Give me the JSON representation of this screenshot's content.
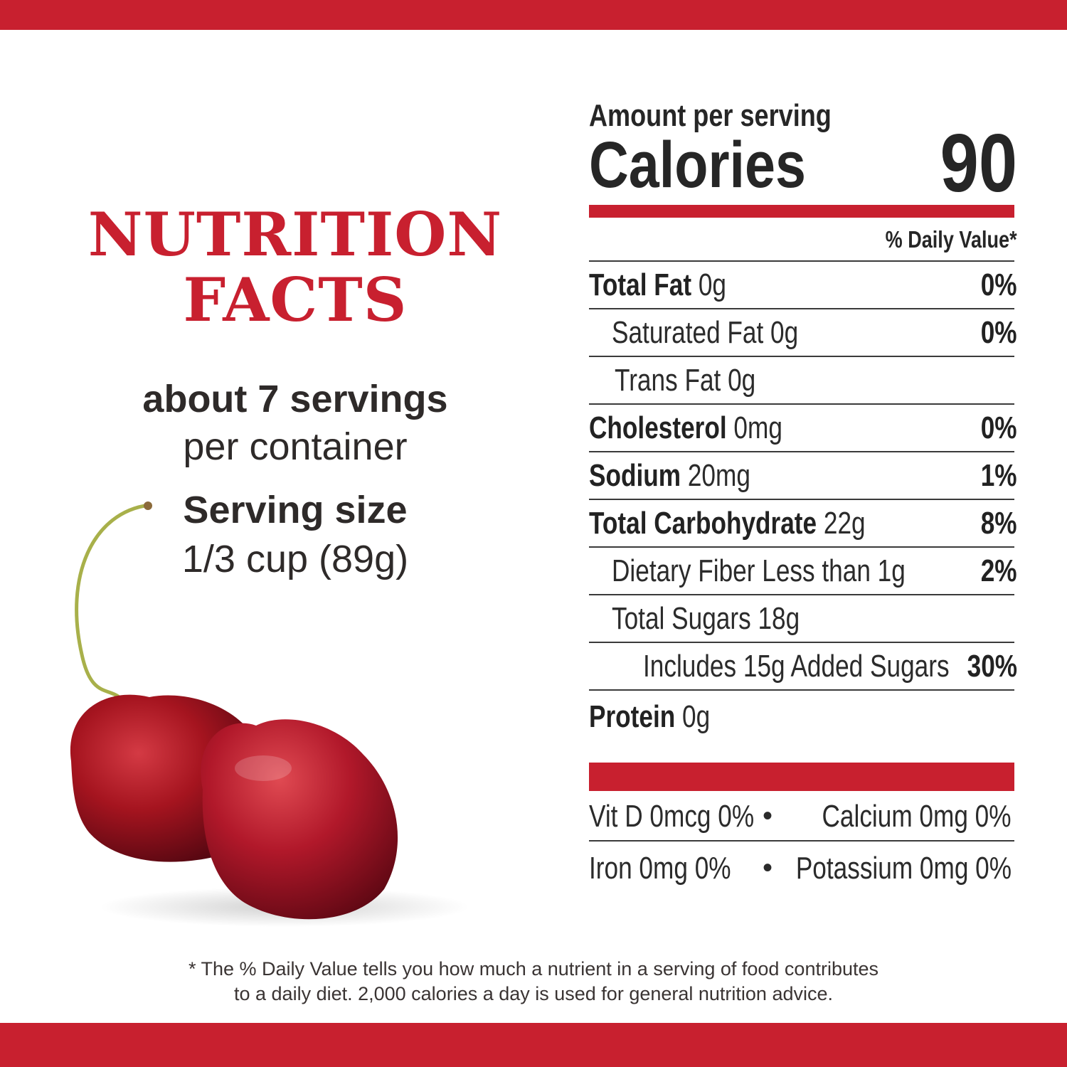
{
  "brand_colors": {
    "accent": "#c8202f",
    "text": "#2b2b2b"
  },
  "heading": {
    "line1": "NUTRITION",
    "line2": "FACTS"
  },
  "servings": {
    "count": "about 7 servings",
    "per": "per container",
    "size_label": "Serving size",
    "size_value": "1/3 cup (89g)"
  },
  "image": {
    "icon": "cherries-illustration"
  },
  "label": {
    "amount_per_serving": "Amount per serving",
    "calories_label": "Calories",
    "calories_value": "90",
    "daily_value_header": "% Daily Value*",
    "rows": [
      {
        "name": "Total Fat",
        "amount": "0g",
        "dv": "0%"
      },
      {
        "name": "Saturated Fat 0g",
        "amount": "",
        "dv": "0%"
      },
      {
        "name": "Trans Fat 0g",
        "amount": "",
        "dv": ""
      },
      {
        "name": "Cholesterol",
        "amount": "0mg",
        "dv": "0%"
      },
      {
        "name": "Sodium",
        "amount": "20mg",
        "dv": "1%"
      },
      {
        "name": "Total Carbohydrate",
        "amount": "22g",
        "dv": "8%"
      },
      {
        "name": "Dietary Fiber Less than 1g",
        "amount": "",
        "dv": "2%"
      },
      {
        "name": "Total Sugars 18g",
        "amount": "",
        "dv": ""
      },
      {
        "name": "Includes 15g Added Sugars",
        "amount": "",
        "dv": "30%"
      },
      {
        "name": "Protein",
        "amount": "0g",
        "dv": ""
      }
    ],
    "vitamins": [
      {
        "left": "Vit D 0mcg 0%",
        "sep": "•",
        "right": "Calcium 0mg 0%"
      },
      {
        "left": "Iron 0mg 0%",
        "sep": "•",
        "right": "Potassium 0mg 0%"
      }
    ]
  },
  "footnote": {
    "line1": "* The % Daily Value tells you how much a nutrient in a serving of food contributes",
    "line2": "to a daily diet. 2,000 calories a day is used for general nutrition advice."
  }
}
